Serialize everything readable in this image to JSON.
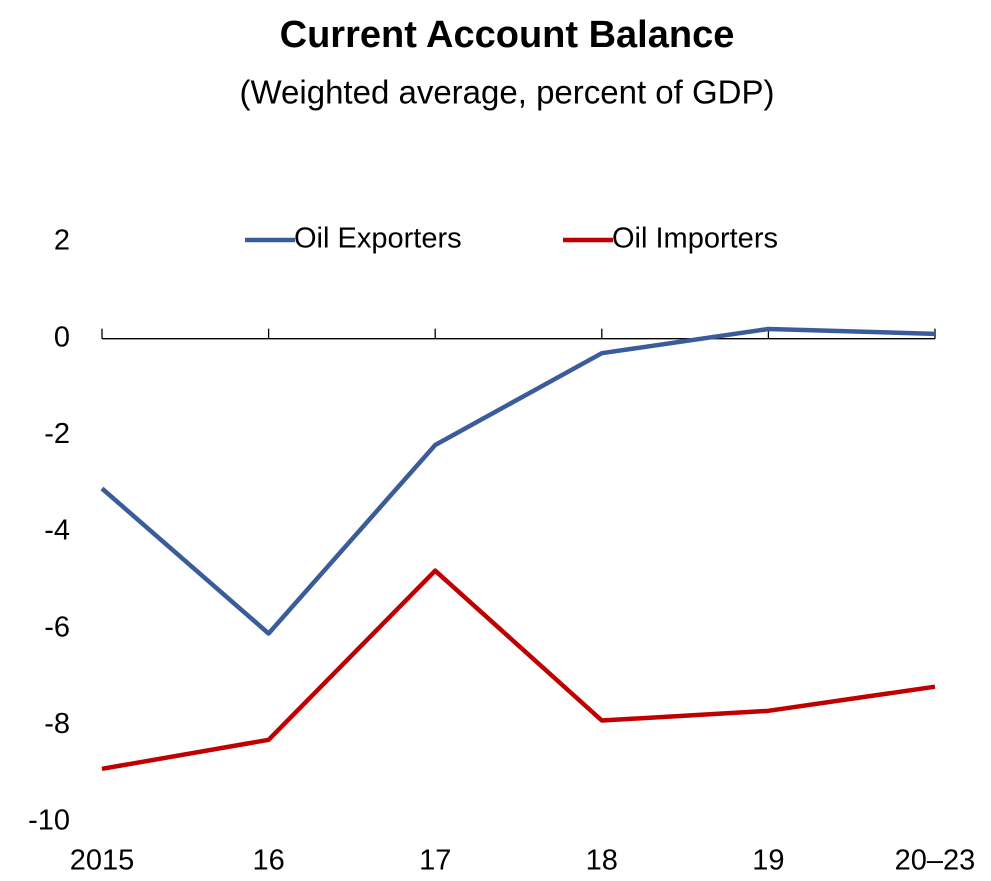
{
  "chart_data": {
    "type": "line",
    "title": "Current Account Balance",
    "subtitle": "(Weighted average, percent of GDP)",
    "categories": [
      "2015",
      "16",
      "17",
      "18",
      "19",
      "20–23"
    ],
    "series": [
      {
        "name": "Oil Exporters",
        "color": "#3a5c9a",
        "values": [
          -3.1,
          -6.1,
          -2.2,
          -0.3,
          0.2,
          0.1
        ]
      },
      {
        "name": "Oil Importers",
        "color": "#c00000",
        "values": [
          -8.9,
          -8.3,
          -4.8,
          -7.9,
          -7.7,
          -7.2
        ]
      }
    ],
    "ylim": [
      -10,
      2
    ],
    "yticks": [
      2,
      0,
      -2,
      -4,
      -6,
      -8,
      -10
    ],
    "grid": false,
    "legend": "top"
  }
}
